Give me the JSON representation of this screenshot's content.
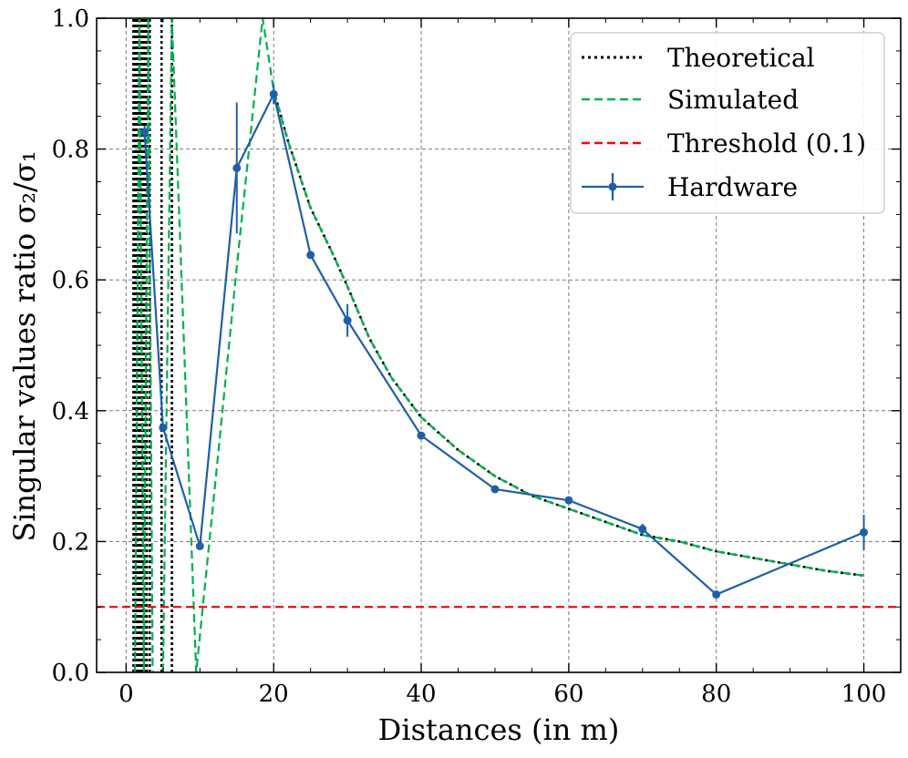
{
  "chart_data": {
    "type": "line",
    "title": "",
    "xlabel": "Distances (in m)",
    "ylabel": "Singular values ratio σ₂/σ₁",
    "xlim": [
      -4,
      105
    ],
    "ylim": [
      0.0,
      1.0
    ],
    "xticks": [
      0,
      20,
      40,
      60,
      80,
      100
    ],
    "xtick_labels": [
      "0",
      "20",
      "40",
      "60",
      "80",
      "100"
    ],
    "yticks": [
      0.0,
      0.2,
      0.4,
      0.6,
      0.8,
      1.0
    ],
    "ytick_labels": [
      "0.0",
      "0.2",
      "0.4",
      "0.6",
      "0.8",
      "1.0"
    ],
    "grid": true,
    "legend_position": "top-right",
    "series": [
      {
        "name": "Theoretical",
        "style": "dotted",
        "color": "#000000",
        "x": [
          20,
          22,
          25,
          28,
          30,
          33,
          36,
          40,
          45,
          50,
          55,
          60,
          65,
          70,
          75,
          80,
          85,
          90,
          95,
          100
        ],
        "y": [
          0.89,
          0.81,
          0.71,
          0.64,
          0.59,
          0.51,
          0.45,
          0.39,
          0.34,
          0.3,
          0.27,
          0.25,
          0.23,
          0.21,
          0.2,
          0.185,
          0.175,
          0.165,
          0.155,
          0.148
        ]
      },
      {
        "name": "Simulated",
        "style": "dashed",
        "color": "#00b050",
        "x": [
          1.2,
          1.8,
          2.4,
          3.0,
          3.6,
          5.0,
          6.2,
          9.5,
          12,
          15,
          18.5,
          20,
          22,
          25,
          28,
          30,
          33,
          36,
          40,
          45,
          50,
          55,
          60,
          65,
          70,
          75,
          80,
          85,
          90,
          95,
          100
        ],
        "y": [
          0.0,
          1.0,
          0.0,
          1.0,
          0.0,
          0.0,
          1.0,
          0.0,
          0.28,
          0.62,
          1.0,
          0.89,
          0.81,
          0.71,
          0.64,
          0.59,
          0.51,
          0.45,
          0.39,
          0.34,
          0.3,
          0.27,
          0.25,
          0.23,
          0.21,
          0.2,
          0.185,
          0.175,
          0.165,
          0.155,
          0.148
        ]
      },
      {
        "name": "Threshold (0.1)",
        "style": "dashed",
        "color": "#ff0000",
        "x": [
          -4,
          105
        ],
        "y": [
          0.1,
          0.1
        ]
      },
      {
        "name": "Hardware",
        "style": "solid-marker",
        "color": "#1f5fa8",
        "x": [
          2.5,
          5,
          10,
          15,
          20,
          25,
          30,
          40,
          50,
          60,
          70,
          80,
          100
        ],
        "y": [
          0.826,
          0.374,
          0.193,
          0.771,
          0.884,
          0.638,
          0.538,
          0.362,
          0.28,
          0.263,
          0.219,
          0.119,
          0.214
        ],
        "yerr": [
          0.01,
          0.005,
          0.005,
          0.1,
          0.015,
          0.005,
          0.025,
          0.005,
          0.004,
          0.004,
          0.008,
          0.004,
          0.027
        ]
      }
    ],
    "theory_near_field_spikes_x": [
      1.0,
      1.3,
      1.6,
      1.9,
      2.2,
      2.5,
      2.8,
      3.2,
      4.8,
      6.2
    ]
  }
}
